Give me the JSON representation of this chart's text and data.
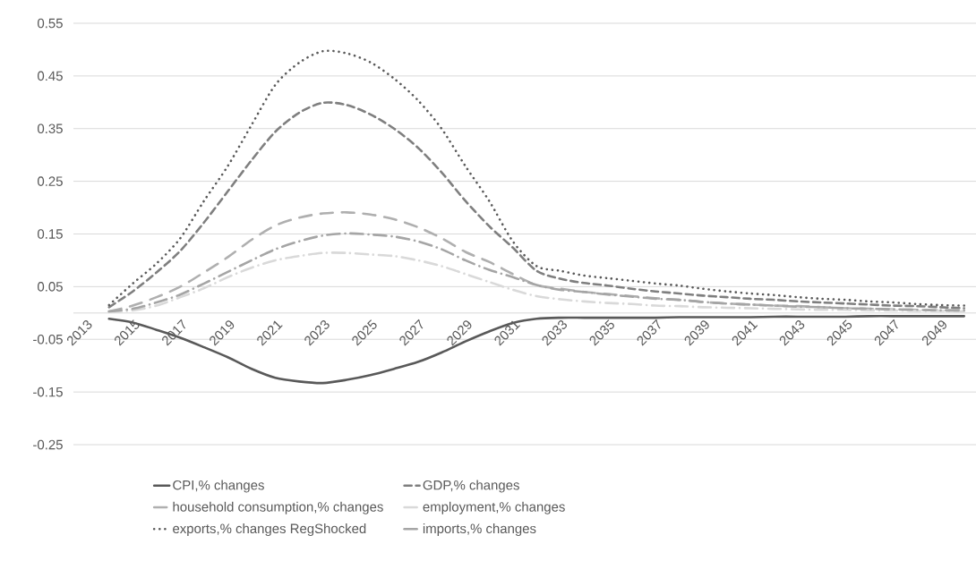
{
  "chart_data": {
    "type": "line",
    "categories": [
      "2013",
      null,
      "2015",
      null,
      "2017",
      null,
      "2019",
      null,
      "2021",
      null,
      "2023",
      null,
      "2025",
      null,
      "2027",
      null,
      "2029",
      null,
      "2031",
      null,
      "2033",
      null,
      "2035",
      null,
      "2037",
      null,
      "2039",
      null,
      "2041",
      null,
      "2043",
      null,
      "2045",
      null,
      "2047",
      null,
      "2049",
      null
    ],
    "series": [
      {
        "name": "CPI,% changes",
        "color": "#595959",
        "line_style": "solid",
        "values": [
          null,
          -0.011,
          -0.018,
          -0.032,
          -0.047,
          -0.065,
          -0.084,
          -0.106,
          -0.123,
          -0.13,
          -0.133,
          -0.127,
          -0.118,
          -0.106,
          -0.093,
          -0.075,
          -0.054,
          -0.035,
          -0.019,
          -0.011,
          -0.009,
          -0.009,
          -0.009,
          -0.009,
          -0.009,
          -0.008,
          -0.008,
          -0.008,
          -0.008,
          -0.007,
          -0.007,
          -0.007,
          -0.007,
          -0.006,
          -0.006,
          -0.006,
          -0.006,
          -0.006
        ]
      },
      {
        "name": "GDP,% changes",
        "color": "#7f7f7f",
        "line_style": "dashed",
        "values": [
          null,
          0.011,
          0.041,
          0.077,
          0.118,
          0.172,
          0.231,
          0.29,
          0.344,
          0.38,
          0.399,
          0.395,
          0.377,
          0.35,
          0.314,
          0.267,
          0.213,
          0.165,
          0.124,
          0.08,
          0.065,
          0.057,
          0.052,
          0.046,
          0.041,
          0.037,
          0.033,
          0.03,
          0.027,
          0.025,
          0.022,
          0.02,
          0.018,
          0.016,
          0.014,
          0.013,
          0.011,
          0.009
        ]
      },
      {
        "name": "household consumption,% changes",
        "color": "#afafaf",
        "line_style": "longdash",
        "values": [
          null,
          0.003,
          0.014,
          0.03,
          0.05,
          0.077,
          0.106,
          0.139,
          0.166,
          0.181,
          0.189,
          0.191,
          0.187,
          0.178,
          0.163,
          0.142,
          0.116,
          0.097,
          0.074,
          0.053,
          0.046,
          0.04,
          0.036,
          0.032,
          0.028,
          0.025,
          0.021,
          0.018,
          0.016,
          0.014,
          0.013,
          0.011,
          0.009,
          0.008,
          0.007,
          0.006,
          0.005,
          0.005
        ]
      },
      {
        "name": "employment,% changes",
        "color": "#d9d9d9",
        "line_style": "dashdot",
        "values": [
          null,
          0.002,
          0.005,
          0.014,
          0.03,
          0.047,
          0.068,
          0.086,
          0.1,
          0.108,
          0.114,
          0.114,
          0.111,
          0.108,
          0.1,
          0.089,
          0.074,
          0.059,
          0.044,
          0.032,
          0.026,
          0.022,
          0.019,
          0.017,
          0.014,
          0.013,
          0.011,
          0.01,
          0.009,
          0.008,
          0.007,
          0.006,
          0.006,
          0.005,
          0.005,
          0.004,
          0.004,
          0.003
        ]
      },
      {
        "name": "exports,% changes RegShocked",
        "color": "#595959",
        "line_style": "dotted",
        "values": [
          null,
          0.015,
          0.056,
          0.094,
          0.142,
          0.213,
          0.279,
          0.357,
          0.433,
          0.475,
          0.497,
          0.493,
          0.476,
          0.445,
          0.404,
          0.35,
          0.279,
          0.213,
          0.136,
          0.089,
          0.08,
          0.071,
          0.066,
          0.061,
          0.056,
          0.052,
          0.046,
          0.041,
          0.037,
          0.034,
          0.03,
          0.027,
          0.025,
          0.022,
          0.02,
          0.017,
          0.015,
          0.014
        ]
      },
      {
        "name": "imports,% changes",
        "color": "#a5a5a5",
        "line_style": "dashdot",
        "values": [
          null,
          0.003,
          0.008,
          0.02,
          0.035,
          0.056,
          0.078,
          0.1,
          0.121,
          0.136,
          0.147,
          0.151,
          0.149,
          0.145,
          0.136,
          0.121,
          0.1,
          0.082,
          0.068,
          0.053,
          0.044,
          0.04,
          0.035,
          0.031,
          0.027,
          0.025,
          0.021,
          0.018,
          0.016,
          0.014,
          0.012,
          0.011,
          0.009,
          0.008,
          0.007,
          0.006,
          0.005,
          0.005
        ]
      }
    ],
    "ylim": [
      -0.25,
      0.55
    ],
    "yticks": [
      {
        "value": -0.25,
        "label": "-0.25"
      },
      {
        "value": -0.15,
        "label": "-0.15"
      },
      {
        "value": -0.05,
        "label": "-0.05"
      },
      {
        "value": 0.05,
        "label": "0.05"
      },
      {
        "value": 0.15,
        "label": "0.15"
      },
      {
        "value": 0.25,
        "label": "0.25"
      },
      {
        "value": 0.35,
        "label": "0.35"
      },
      {
        "value": 0.45,
        "label": "0.45"
      },
      {
        "value": 0.55,
        "label": "0.55"
      }
    ],
    "grid": "y",
    "legend": "bottom"
  }
}
